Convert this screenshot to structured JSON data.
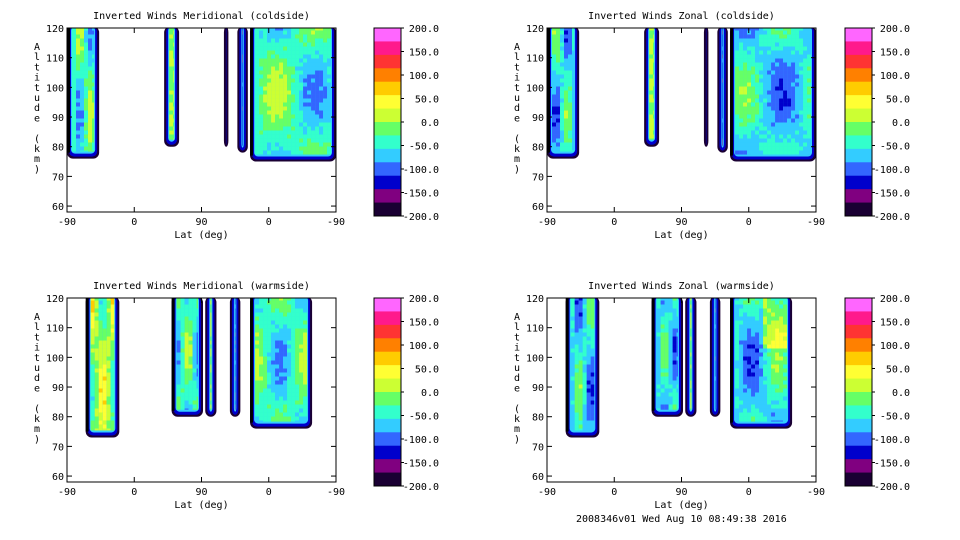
{
  "footer": "2008346v01 Wed Aug 10 08:49:38 2016",
  "colorbar": {
    "ticks": [
      "200.0",
      "150.0",
      "100.0",
      "50.0",
      "0.0",
      "-50.0",
      "-100.0",
      "-150.0",
      "-200.0"
    ],
    "colors": [
      "#ff66ff",
      "#ff1a8c",
      "#ff3333",
      "#ff8000",
      "#ffcc00",
      "#ffff33",
      "#ccff33",
      "#66ff66",
      "#33ffcc",
      "#33ccff",
      "#3366ff",
      "#0000cc",
      "#800080",
      "#1a0033"
    ]
  },
  "chart_data": [
    {
      "type": "heatmap",
      "title": "Inverted Winds Meridional (coldside)",
      "xlabel": "Lat (deg)",
      "ylabel": "Altitude (km)",
      "xticks": [
        "-90",
        "0",
        "90",
        "0",
        "-90"
      ],
      "yticks": [
        "60",
        "70",
        "80",
        "90",
        "100",
        "110",
        "120"
      ],
      "ylim": [
        58,
        120
      ],
      "zlim": [
        -200,
        200
      ],
      "bands": [
        [
          -90,
          -47
        ],
        [
          40,
          60
        ],
        [
          120,
          126
        ],
        [
          138,
          152
        ],
        [
          155,
          270
        ]
      ],
      "band_bottoms": [
        76,
        80,
        80,
        78,
        75
      ]
    },
    {
      "type": "heatmap",
      "title": "Inverted Winds Zonal (coldside)",
      "xlabel": "Lat (deg)",
      "ylabel": "Altitude (km)",
      "xticks": [
        "-90",
        "0",
        "90",
        "0",
        "-90"
      ],
      "yticks": [
        "60",
        "70",
        "80",
        "90",
        "100",
        "110",
        "120"
      ],
      "ylim": [
        58,
        120
      ],
      "zlim": [
        -200,
        200
      ],
      "bands": [
        [
          -90,
          -47
        ],
        [
          40,
          60
        ],
        [
          120,
          126
        ],
        [
          138,
          152
        ],
        [
          155,
          270
        ]
      ],
      "band_bottoms": [
        76,
        80,
        80,
        78,
        75
      ]
    },
    {
      "type": "heatmap",
      "title": "Inverted Winds Meridional (warmside)",
      "xlabel": "Lat (deg)",
      "ylabel": "Altitude (km)",
      "xticks": [
        "-90",
        "0",
        "90",
        "0",
        "-90"
      ],
      "yticks": [
        "60",
        "70",
        "80",
        "90",
        "100",
        "110",
        "120"
      ],
      "ylim": [
        58,
        120
      ],
      "zlim": [
        -200,
        200
      ],
      "bands": [
        [
          -65,
          -20
        ],
        [
          50,
          92
        ],
        [
          95,
          110
        ],
        [
          128,
          142
        ],
        [
          155,
          238
        ]
      ],
      "band_bottoms": [
        73,
        80,
        80,
        80,
        76
      ]
    },
    {
      "type": "heatmap",
      "title": "Inverted Winds Zonal (warmside)",
      "xlabel": "Lat (deg)",
      "ylabel": "Altitude (km)",
      "xticks": [
        "-90",
        "0",
        "90",
        "0",
        "-90"
      ],
      "yticks": [
        "60",
        "70",
        "80",
        "90",
        "100",
        "110",
        "120"
      ],
      "ylim": [
        58,
        120
      ],
      "zlim": [
        -200,
        200
      ],
      "bands": [
        [
          -65,
          -20
        ],
        [
          50,
          92
        ],
        [
          95,
          110
        ],
        [
          128,
          142
        ],
        [
          155,
          238
        ]
      ],
      "band_bottoms": [
        73,
        80,
        80,
        80,
        76
      ]
    }
  ]
}
